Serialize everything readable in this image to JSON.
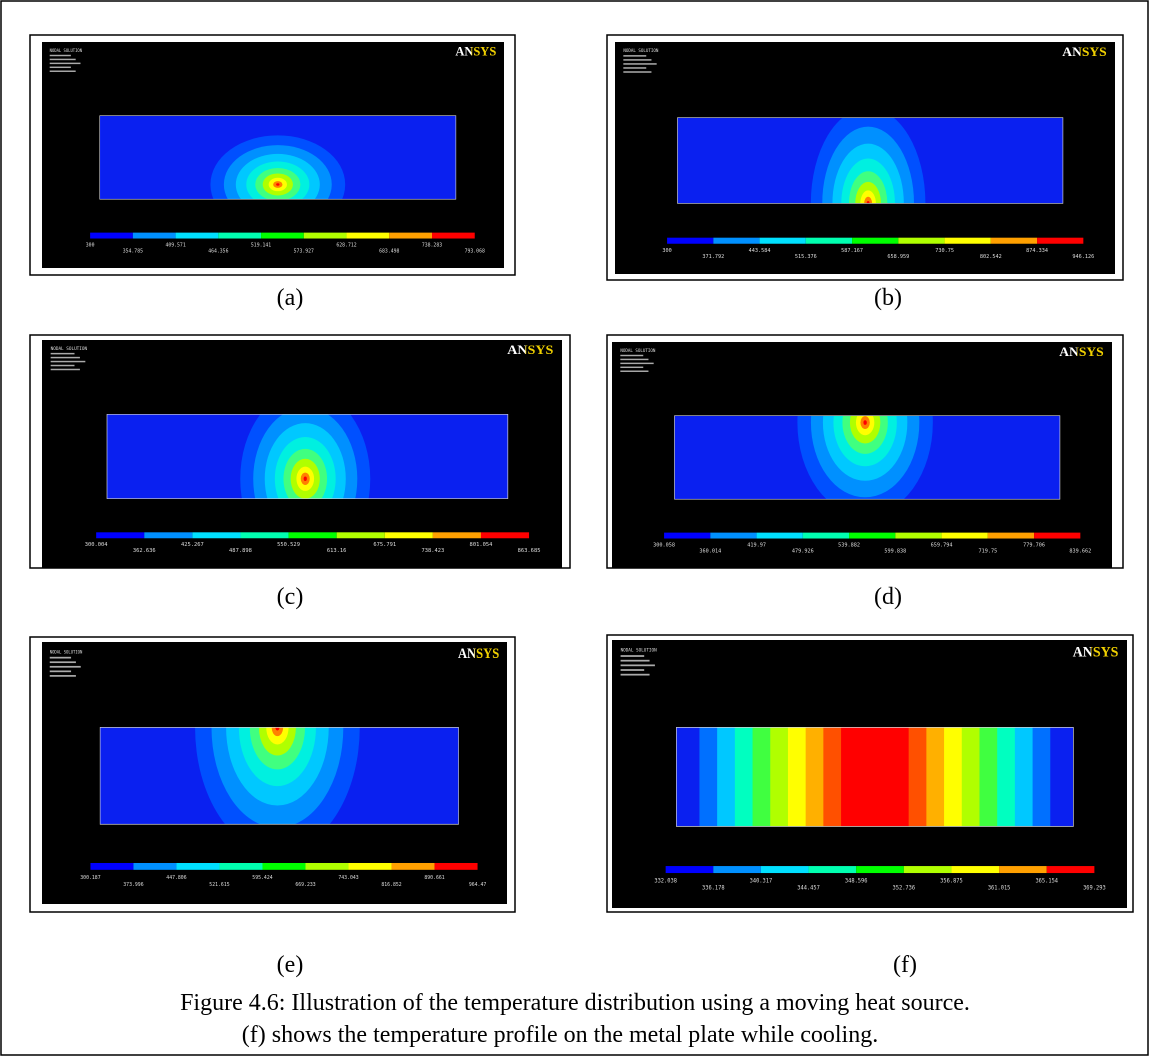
{
  "panels": [
    {
      "label": "(a)",
      "header": "NODAL SOLUTION",
      "logo": "ANSYS",
      "legend": [
        "300",
        "354.785",
        "409.571",
        "464.356",
        "519.141",
        "573.927",
        "628.712",
        "683.498",
        "738.283",
        "793.068"
      ]
    },
    {
      "label": "(b)",
      "header": "NODAL SOLUTION",
      "logo": "ANSYS",
      "legend": [
        "300",
        "371.792",
        "443.584",
        "515.376",
        "587.167",
        "658.959",
        "730.75",
        "802.542",
        "874.334",
        "946.126"
      ]
    },
    {
      "label": "(c)",
      "header": "NODAL SOLUTION",
      "logo": "ANSYS",
      "legend": [
        "300.004",
        "362.636",
        "425.267",
        "487.898",
        "550.529",
        "613.16",
        "675.791",
        "738.423",
        "801.054",
        "863.685"
      ]
    },
    {
      "label": "(d)",
      "header": "NODAL SOLUTION",
      "logo": "ANSYS",
      "legend": [
        "300.058",
        "360.014",
        "419.97",
        "479.926",
        "539.882",
        "599.838",
        "659.794",
        "719.75",
        "779.706",
        "839.662"
      ]
    },
    {
      "label": "(e)",
      "header": "NODAL SOLUTION",
      "logo": "ANSYS",
      "legend": [
        "300.187",
        "373.996",
        "447.806",
        "521.615",
        "595.424",
        "669.233",
        "743.043",
        "816.852",
        "890.661",
        "964.47"
      ]
    },
    {
      "label": "(f)",
      "header": "NODAL SOLUTION",
      "logo": "ANSYS",
      "legend": [
        "332.038",
        "336.178",
        "340.317",
        "344.457",
        "348.596",
        "352.736",
        "356.875",
        "361.015",
        "365.154",
        "369.293"
      ]
    }
  ],
  "caption": [
    "Figure 4.6: Illustration of the temperature distribution using a moving heat source.",
    "(f) shows the temperature profile on the metal plate while cooling."
  ]
}
